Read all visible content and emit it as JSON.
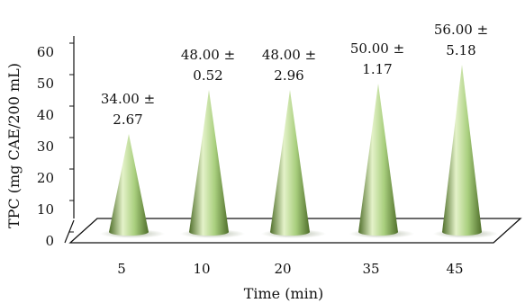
{
  "chart_data": {
    "type": "bar",
    "bar_shape": "cone",
    "categories": [
      "5",
      "10",
      "20",
      "35",
      "45"
    ],
    "values": [
      34.0,
      48.0,
      48.0,
      50.0,
      56.0
    ],
    "data_labels": [
      [
        "34.00 ±",
        "2.67"
      ],
      [
        "48.00 ±",
        "0.52"
      ],
      [
        "48.00 ±",
        "2.96"
      ],
      [
        "50.00 ±",
        "1.17"
      ],
      [
        "56.00 ±",
        "5.18"
      ]
    ],
    "xlabel": "Time (min)",
    "ylabel": "TPC (mg CAE/200 mL)",
    "ylim": [
      0,
      60
    ],
    "yticks": [
      "0",
      "10",
      "20",
      "30",
      "40",
      "50",
      "60"
    ],
    "grid": false,
    "legend": "none",
    "colors": {
      "cone_light": "#e4f2c9",
      "cone_mid": "#a9cf7e",
      "cone_dark": "#4f6e2a",
      "floor": "#ffffff",
      "axis": "#111111"
    }
  }
}
